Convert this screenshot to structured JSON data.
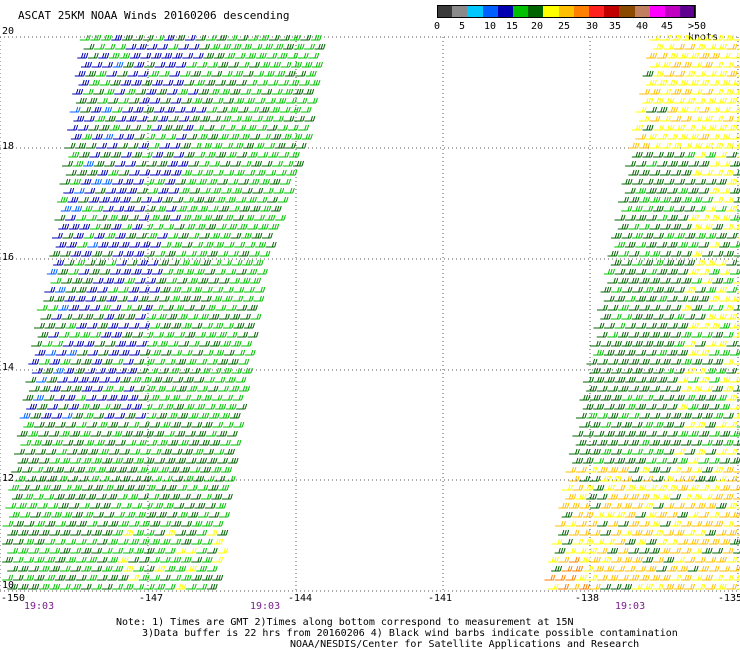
{
  "title": "ASCAT 25KM NOAA Winds 20160206 descending",
  "colorbar": {
    "colors": [
      "#3a3a3a",
      "#8a8a8a",
      "#00c8ff",
      "#0060ff",
      "#0000b0",
      "#00c000",
      "#006400",
      "#ffff00",
      "#ffc000",
      "#ff8000",
      "#ff2020",
      "#c00000",
      "#8a4a00",
      "#c08060",
      "#ff00ff",
      "#c000c0",
      "#600090"
    ],
    "labels": [
      "0",
      "5",
      "10",
      "15",
      "20",
      "25",
      "30",
      "35",
      "40",
      "45",
      ">50 knots"
    ]
  },
  "y_ticks": [
    "20",
    "18",
    "16",
    "14",
    "12",
    "10"
  ],
  "x_ticks": [
    "-150",
    "-147",
    "-144",
    "-141",
    "-138",
    "-135"
  ],
  "times": [
    "19:03",
    "19:03",
    "19:03"
  ],
  "notes": [
    "Note: 1) Times are GMT 2)Times along bottom correspond to measurement at 15N",
    "3)Data buffer is 22 hrs from 20160206 4) Black wind barbs indicate possible contamination",
    "NOAA/NESDIS/Center for Satellite Applications and Research"
  ],
  "map": {
    "lat_range": [
      10,
      20
    ],
    "lon_range": [
      -150,
      -135
    ],
    "swaths": [
      {
        "name": "left-swath",
        "dominant_colors": [
          "#0000b0",
          "#00c000",
          "#006400"
        ]
      },
      {
        "name": "right-swath",
        "dominant_colors": [
          "#ffff00",
          "#ffc000",
          "#006400"
        ]
      }
    ]
  }
}
